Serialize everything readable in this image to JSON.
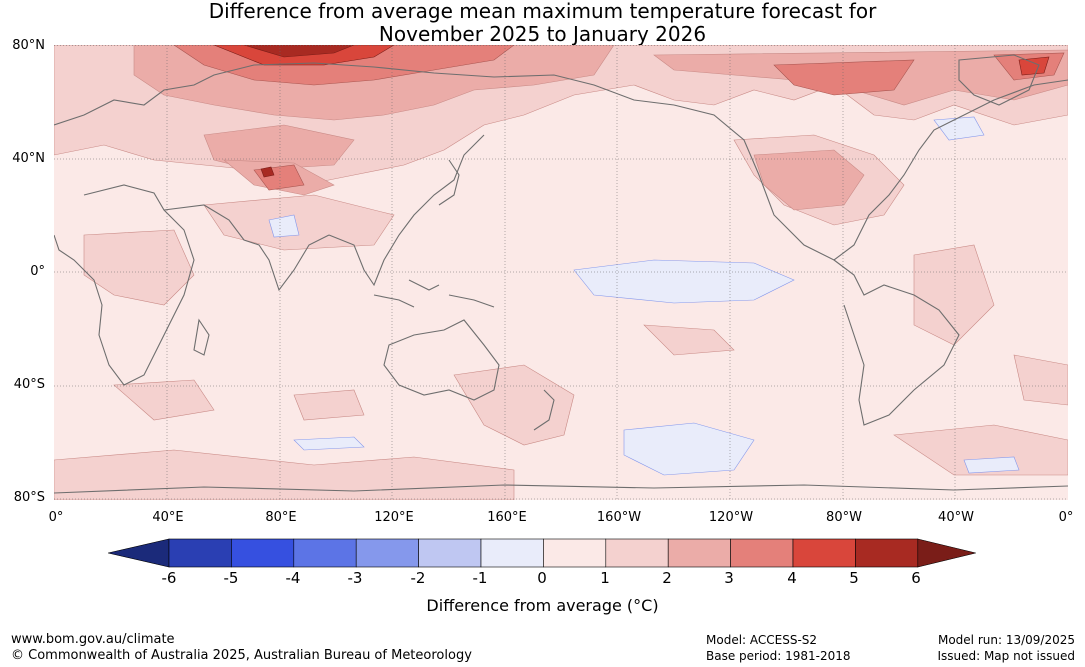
{
  "title": {
    "line1": "Difference from average mean maximum temperature forecast for",
    "line2": "November 2025 to January 2026"
  },
  "lat_labels": [
    "80°N",
    "40°N",
    "0°",
    "40°S",
    "80°S"
  ],
  "lon_labels": [
    "0°",
    "40°E",
    "80°E",
    "120°E",
    "160°E",
    "160°W",
    "120°W",
    "80°W",
    "40°W",
    "0°"
  ],
  "colorbar": {
    "ticks": [
      "-6",
      "-5",
      "-4",
      "-3",
      "-2",
      "-1",
      "0",
      "1",
      "2",
      "3",
      "4",
      "5",
      "6"
    ],
    "label": "Difference from average (°C)",
    "colors": [
      "#1b2a7a",
      "#2a3fb3",
      "#3650e0",
      "#5c74e6",
      "#8598ec",
      "#bfc7f2",
      "#e9ecfa",
      "#fbe9e7",
      "#f4d1cf",
      "#ebaca8",
      "#e4807a",
      "#d9463b",
      "#a82a22",
      "#7a1d18"
    ]
  },
  "footer": {
    "website": "www.bom.gov.au/climate",
    "copyright": "© Commonwealth of Australia 2025, Australian Bureau of Meteorology",
    "model": "Model: ACCESS-S2",
    "base_period": "Base period: 1981-2018",
    "model_run": "Model run: 13/09/2025",
    "issued": "Issued: Map not issued"
  }
}
